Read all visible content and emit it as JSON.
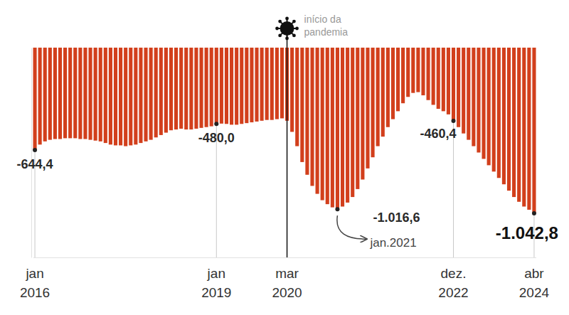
{
  "chart_data": {
    "type": "bar",
    "color": "#d23f1c",
    "categories": [
      "jan 2016",
      null,
      null,
      null,
      null,
      null,
      null,
      null,
      null,
      null,
      null,
      null,
      null,
      null,
      null,
      null,
      null,
      null,
      null,
      null,
      null,
      null,
      null,
      null,
      null,
      null,
      null,
      null,
      null,
      null,
      null,
      null,
      null,
      null,
      null,
      null,
      "jan 2019",
      null,
      null,
      null,
      null,
      null,
      null,
      null,
      null,
      null,
      null,
      null,
      null,
      null,
      "mar 2020",
      null,
      null,
      null,
      null,
      null,
      null,
      null,
      null,
      null,
      null,
      null,
      null,
      null,
      null,
      null,
      null,
      null,
      null,
      null,
      null,
      null,
      null,
      null,
      null,
      null,
      null,
      null,
      null,
      null,
      null,
      null,
      null,
      "dez. 2022",
      null,
      null,
      null,
      null,
      null,
      null,
      null,
      null,
      null,
      null,
      null,
      null,
      null,
      null,
      null,
      "abr 2024"
    ],
    "values": [
      -644.4,
      -610,
      -590,
      -580,
      -575,
      -575,
      -570,
      -570,
      -570,
      -575,
      -575,
      -580,
      -585,
      -590,
      -600,
      -610,
      -615,
      -615,
      -620,
      -615,
      -610,
      -600,
      -590,
      -580,
      -565,
      -550,
      -535,
      -520,
      -515,
      -510,
      -515,
      -515,
      -510,
      -505,
      -500,
      -495,
      -480,
      -478,
      -480,
      -485,
      -485,
      -480,
      -475,
      -470,
      -465,
      -460,
      -455,
      -455,
      -450,
      -445,
      -460,
      -530,
      -620,
      -720,
      -800,
      -870,
      -920,
      -960,
      -985,
      -1005,
      -1016.6,
      -1000,
      -975,
      -940,
      -890,
      -830,
      -760,
      -690,
      -620,
      -560,
      -500,
      -450,
      -400,
      -350,
      -310,
      -285,
      -280,
      -300,
      -330,
      -360,
      -385,
      -400,
      -420,
      -460.4,
      -500,
      -540,
      -580,
      -620,
      -660,
      -700,
      -740,
      -780,
      -820,
      -860,
      -900,
      -940,
      -970,
      -1000,
      -1020,
      -1042.8
    ],
    "value_labels": [
      "-644,4",
      null,
      null,
      null,
      null,
      null,
      null,
      null,
      null,
      null,
      null,
      null,
      null,
      null,
      null,
      null,
      null,
      null,
      null,
      null,
      null,
      null,
      null,
      null,
      null,
      null,
      null,
      null,
      null,
      null,
      null,
      null,
      null,
      null,
      null,
      null,
      "-480,0",
      null,
      null,
      null,
      null,
      null,
      null,
      null,
      null,
      null,
      null,
      null,
      null,
      null,
      null,
      null,
      null,
      null,
      null,
      null,
      null,
      null,
      null,
      null,
      "-1.016,6",
      null,
      null,
      null,
      null,
      null,
      null,
      null,
      null,
      null,
      null,
      null,
      null,
      null,
      null,
      null,
      null,
      null,
      null,
      null,
      null,
      null,
      null,
      "-460,4",
      null,
      null,
      null,
      null,
      null,
      null,
      null,
      null,
      null,
      null,
      null,
      null,
      null,
      null,
      null,
      "-1.042,8"
    ],
    "data_labels": true,
    "ylim": [
      -1320,
      0
    ],
    "tick_labels": "x",
    "annotations": [
      {
        "text": "início da pandemia",
        "index": 50
      },
      {
        "text": "jan.2021",
        "index": 60
      }
    ]
  }
}
